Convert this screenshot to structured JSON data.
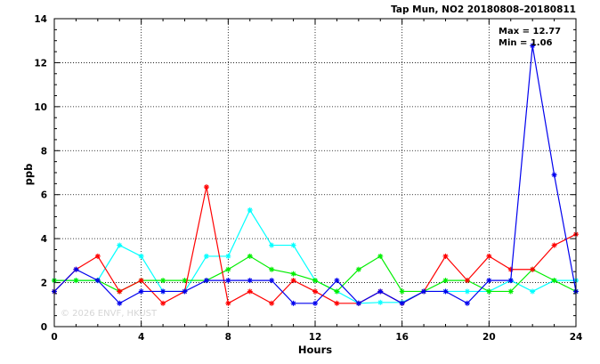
{
  "chart_data": {
    "type": "line",
    "title": "Tap Mun, NO2 20180808–20180811",
    "xlabel": "Hours",
    "ylabel": "ppb",
    "xlim": [
      0,
      24
    ],
    "ylim": [
      0,
      14
    ],
    "x_ticks": [
      "0",
      "4",
      "8",
      "12",
      "16",
      "20",
      "24"
    ],
    "y_ticks": [
      "0",
      "2",
      "4",
      "6",
      "8",
      "10",
      "12",
      "14"
    ],
    "grid": true,
    "annotations": [
      "Max = 12.77",
      "Min = 1.06"
    ],
    "watermark": "© 2026  ENVF, HKUST",
    "x": [
      0,
      1,
      2,
      3,
      4,
      5,
      6,
      7,
      8,
      9,
      10,
      11,
      12,
      13,
      14,
      15,
      16,
      17,
      18,
      19,
      20,
      21,
      22,
      23,
      24
    ],
    "series": [
      {
        "color": "#00ffff",
        "values": [
          2.1,
          2.1,
          2.1,
          3.7,
          3.2,
          1.6,
          1.6,
          3.2,
          3.2,
          5.3,
          3.7,
          3.7,
          2.1,
          1.6,
          1.06,
          1.1,
          1.1,
          1.6,
          1.6,
          1.6,
          1.6,
          2.1,
          1.6,
          2.1,
          2.1
        ]
      },
      {
        "color": "#00ee00",
        "values": [
          2.1,
          2.1,
          2.1,
          1.6,
          2.1,
          2.1,
          2.1,
          2.1,
          2.6,
          3.2,
          2.6,
          2.4,
          2.1,
          1.6,
          2.6,
          3.2,
          1.6,
          1.6,
          2.1,
          2.1,
          1.6,
          1.6,
          2.6,
          2.1,
          1.6
        ]
      },
      {
        "color": "#ff0000",
        "values": [
          1.6,
          2.6,
          3.2,
          1.6,
          2.1,
          1.06,
          1.6,
          6.35,
          1.06,
          1.6,
          1.06,
          2.1,
          1.6,
          1.06,
          1.06,
          1.6,
          1.06,
          1.6,
          3.2,
          2.1,
          3.2,
          2.6,
          2.6,
          3.7,
          4.2
        ]
      },
      {
        "color": "#0000ee",
        "values": [
          1.6,
          2.6,
          2.1,
          1.06,
          1.6,
          1.6,
          1.6,
          2.1,
          2.1,
          2.1,
          2.1,
          1.06,
          1.06,
          2.1,
          1.06,
          1.6,
          1.06,
          1.6,
          1.6,
          1.06,
          2.1,
          2.1,
          12.77,
          6.9,
          1.6
        ]
      }
    ]
  }
}
